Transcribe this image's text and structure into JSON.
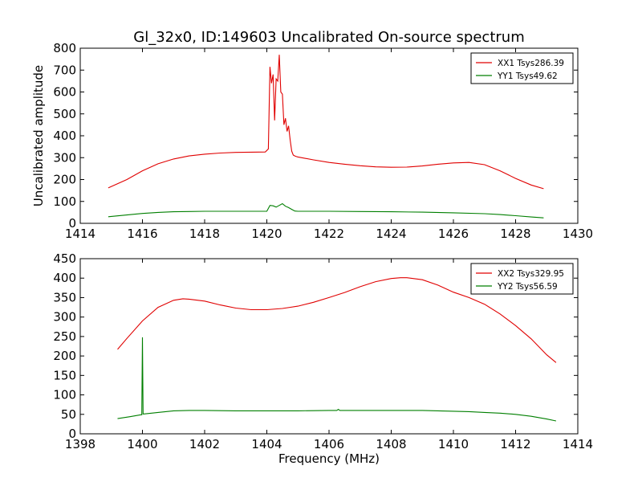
{
  "chart_data": [
    {
      "type": "line",
      "title": "Gl_32x0, ID:149603 Uncalibrated On-source spectrum",
      "xlabel": "",
      "ylabel": "Uncalibrated amplitude",
      "xlim": [
        1414,
        1430
      ],
      "ylim": [
        0,
        800
      ],
      "xticks": [
        1414,
        1416,
        1418,
        1420,
        1422,
        1424,
        1426,
        1428,
        1430
      ],
      "yticks": [
        0,
        100,
        200,
        300,
        400,
        500,
        600,
        700,
        800
      ],
      "legend_position": "top-right",
      "colors": {
        "XX": "#e00000",
        "YY": "#007f00"
      },
      "series": [
        {
          "name": "XX1 Tsys286.39",
          "color": "#e00000",
          "x": [
            1414.9,
            1415.5,
            1416,
            1416.5,
            1417,
            1417.5,
            1418,
            1418.5,
            1419,
            1419.5,
            1419.95,
            1420.05,
            1420.1,
            1420.15,
            1420.2,
            1420.25,
            1420.3,
            1420.35,
            1420.4,
            1420.45,
            1420.5,
            1420.55,
            1420.6,
            1420.65,
            1420.7,
            1420.75,
            1420.8,
            1420.85,
            1420.9,
            1420.95,
            1421.0,
            1421.5,
            1422,
            1422.5,
            1423,
            1423.5,
            1424,
            1424.5,
            1425,
            1425.5,
            1426,
            1426.5,
            1427,
            1427.5,
            1428,
            1428.5,
            1428.9
          ],
          "y": [
            162,
            200,
            240,
            272,
            294,
            308,
            316,
            321,
            324,
            325,
            326,
            340,
            715,
            640,
            680,
            470,
            660,
            650,
            770,
            600,
            590,
            450,
            480,
            420,
            445,
            380,
            330,
            312,
            308,
            305,
            303,
            290,
            278,
            270,
            263,
            258,
            256,
            257,
            262,
            270,
            276,
            278,
            268,
            240,
            205,
            175,
            158
          ]
        },
        {
          "name": "YY1 Tsys49.62",
          "color": "#007f00",
          "x": [
            1414.9,
            1415.5,
            1416,
            1416.5,
            1417,
            1417.5,
            1418,
            1418.5,
            1419,
            1419.5,
            1420,
            1420.1,
            1420.2,
            1420.3,
            1420.4,
            1420.5,
            1420.6,
            1420.7,
            1420.8,
            1420.9,
            1421,
            1421.5,
            1422,
            1423,
            1424,
            1425,
            1426,
            1427,
            1427.5,
            1428,
            1428.5,
            1428.9
          ],
          "y": [
            30,
            38,
            45,
            50,
            53,
            54,
            55,
            55,
            55,
            55,
            55,
            82,
            80,
            74,
            82,
            90,
            78,
            72,
            64,
            56,
            55,
            55,
            55,
            54,
            53,
            51,
            48,
            44,
            40,
            35,
            29,
            25
          ]
        }
      ]
    },
    {
      "type": "line",
      "title": "",
      "xlabel": "Frequency (MHz)",
      "ylabel": "",
      "xlim": [
        1398,
        1414
      ],
      "ylim": [
        0,
        450
      ],
      "xticks": [
        1398,
        1400,
        1402,
        1404,
        1406,
        1408,
        1410,
        1412,
        1414
      ],
      "yticks": [
        0,
        50,
        100,
        150,
        200,
        250,
        300,
        350,
        400,
        450
      ],
      "legend_position": "top-right",
      "series": [
        {
          "name": "XX2 Tsys329.95",
          "color": "#e00000",
          "x": [
            1399.2,
            1399.5,
            1400,
            1400.5,
            1401,
            1401.3,
            1401.5,
            1402,
            1402.5,
            1403,
            1403.5,
            1404,
            1404.5,
            1405,
            1405.5,
            1406,
            1406.5,
            1407,
            1407.5,
            1408,
            1408.3,
            1408.5,
            1409,
            1409.5,
            1410,
            1410.5,
            1411,
            1411.5,
            1412,
            1412.5,
            1413,
            1413.3
          ],
          "y": [
            217,
            245,
            290,
            325,
            343,
            347,
            346,
            341,
            331,
            323,
            319,
            319,
            322,
            328,
            338,
            350,
            363,
            378,
            391,
            399,
            401,
            401,
            396,
            382,
            364,
            350,
            333,
            308,
            278,
            244,
            203,
            183
          ]
        },
        {
          "name": "YY2 Tsys56.59",
          "color": "#007f00",
          "x": [
            1399.2,
            1399.6,
            1399.95,
            1399.98,
            1400.0,
            1400.02,
            1400.05,
            1400.5,
            1401,
            1401.5,
            1402,
            1403,
            1404,
            1405,
            1406,
            1406.25,
            1406.3,
            1406.35,
            1407,
            1408,
            1409,
            1410,
            1410.5,
            1411,
            1411.5,
            1412,
            1412.5,
            1413,
            1413.3
          ],
          "y": [
            39,
            44,
            49,
            49,
            248,
            51,
            51,
            55,
            59,
            60,
            60,
            59,
            59,
            59,
            60,
            60,
            63,
            60,
            60,
            60,
            60,
            58,
            57,
            55,
            53,
            50,
            45,
            38,
            33
          ]
        }
      ]
    }
  ]
}
